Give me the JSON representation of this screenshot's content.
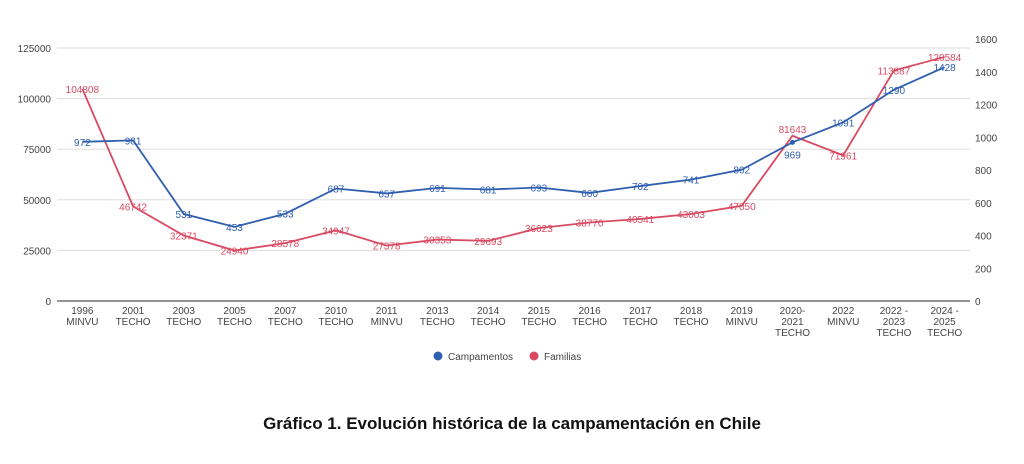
{
  "chart_data": {
    "type": "line",
    "title": "Gráfico 1. Evolución histórica de la campamentación en Chile",
    "categories": [
      "1996\nMINVU",
      "2001\nTECHO",
      "2003\nTECHO",
      "2005\nTECHO",
      "2007\nTECHO",
      "2010\nTECHO",
      "2011\nMINVU",
      "2013\nTECHO",
      "2014\nTECHO",
      "2015\nTECHO",
      "2016\nTECHO",
      "2017\nTECHO",
      "2018\nTECHO",
      "2019\nMINVU",
      "2020-\n2021\nTECHO",
      "2022\nMINVU",
      "2022 -\n2023\nTECHO",
      "2024 -\n2025\nTECHO"
    ],
    "series": [
      {
        "name": "Campamentos",
        "axis": "right",
        "color": "#2f5faf",
        "values": [
          972,
          981,
          531,
          453,
          533,
          687,
          657,
          691,
          681,
          693,
          660,
          702,
          741,
          802,
          969,
          1091,
          1290,
          1428
        ]
      },
      {
        "name": "Familias",
        "axis": "left",
        "color": "#d94b63",
        "values": [
          104808,
          46742,
          32371,
          24940,
          28578,
          34947,
          27378,
          30353,
          29693,
          36023,
          38770,
          40541,
          43003,
          47050,
          81643,
          71961,
          113887,
          120584
        ]
      }
    ],
    "left_axis": {
      "ylim": [
        0,
        125000
      ],
      "ticks": [
        0,
        25000,
        50000,
        75000,
        100000,
        125000
      ]
    },
    "right_axis": {
      "ylim": [
        0,
        1600
      ],
      "ticks": [
        0,
        200,
        400,
        600,
        800,
        1000,
        1200,
        1400,
        1600
      ]
    },
    "grid": true,
    "legend": "bottom"
  }
}
